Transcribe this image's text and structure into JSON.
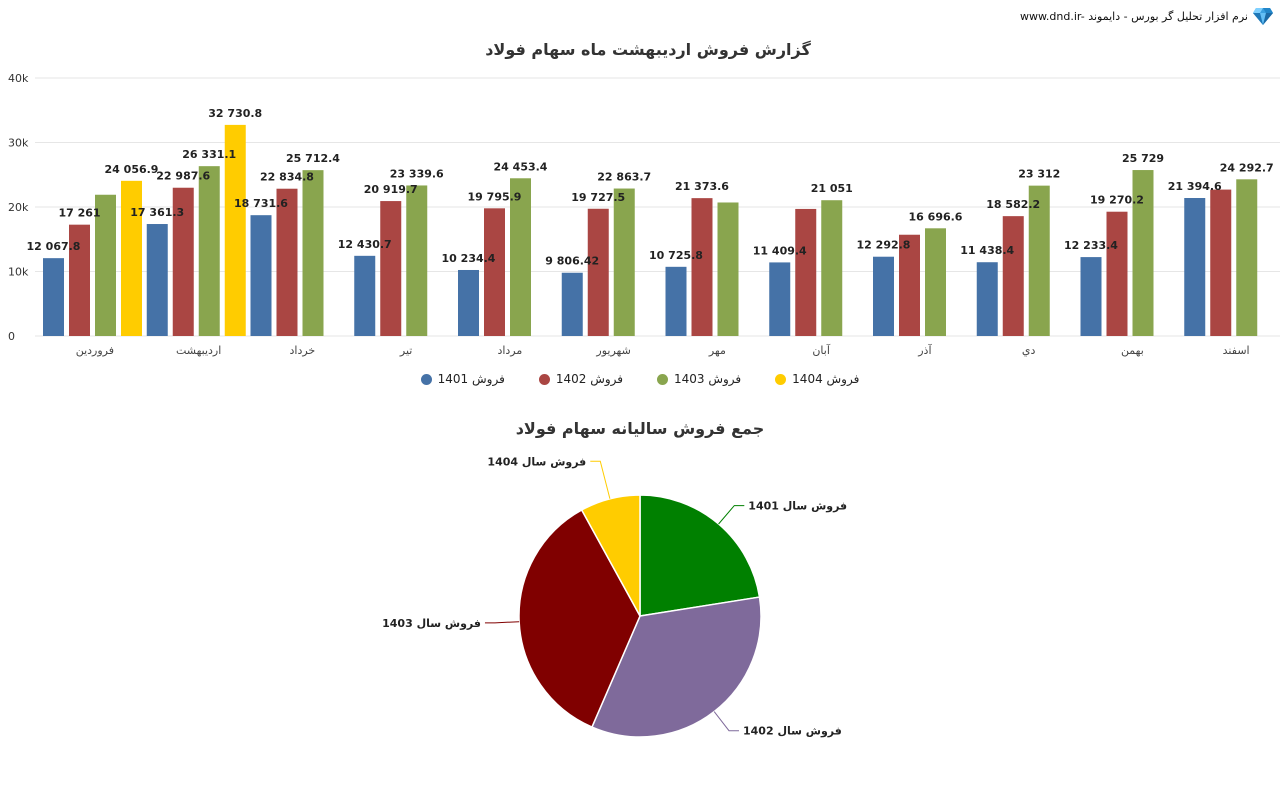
{
  "brand": {
    "text": "www.dnd.ir- نرم افزار تحلیل گر بورس - دایموند",
    "icon": "diamond-icon"
  },
  "bar_chart_title": "گزارش فروش اردیبهشت ماه سهام فولاد",
  "pie_chart_title": "جمع فروش سالیانه سهام فولاد",
  "legend": [
    {
      "label": "فروش 1401",
      "color": "#4572a7"
    },
    {
      "label": "فروش 1402",
      "color": "#aa4643"
    },
    {
      "label": "فروش 1403",
      "color": "#89a54e"
    },
    {
      "label": "فروش 1404",
      "color": "#ffcc00"
    }
  ],
  "chart_data": [
    {
      "type": "bar",
      "title": "گزارش فروش اردیبهشت ماه سهام فولاد",
      "categories": [
        "فروردین",
        "اردیبهشت",
        "خرداد",
        "تیر",
        "مرداد",
        "شهریور",
        "مهر",
        "آبان",
        "آذر",
        "دي",
        "بهمن",
        "اسفند"
      ],
      "yticks": [
        "0",
        "10k",
        "20k",
        "30k",
        "40k"
      ],
      "ylim": [
        0,
        40000
      ],
      "grid": true,
      "legend_position": "bottom",
      "series": [
        {
          "name": "فروش 1401",
          "color": "#4572a7",
          "values": [
            12067.8,
            17361.3,
            18731.6,
            12430.7,
            10234.4,
            9806.42,
            10725.8,
            11409.4,
            12292.8,
            11438.4,
            12233.4,
            21394.6
          ],
          "labels": [
            "12 067.8",
            "17 361.3",
            "18 731.6",
            "12 430.7",
            "10 234.4",
            "9 806.42",
            "10 725.8",
            "11 409.4",
            "12 292.8",
            "11 438.4",
            "12 233.4",
            "21 394.6"
          ]
        },
        {
          "name": "فروش 1402",
          "color": "#aa4643",
          "values": [
            17261,
            22987.6,
            22834.8,
            20919.7,
            19795.9,
            19727.5,
            21373.6,
            19700,
            15700,
            18582.2,
            19270.2,
            22700
          ],
          "labels": [
            "17 261",
            "22 987.6",
            "22 834.8",
            "20 919.7",
            "19 795.9",
            "19 727.5",
            "21 373.6",
            "",
            "",
            "18 582.2",
            "19 270.2",
            ""
          ]
        },
        {
          "name": "فروش 1403",
          "color": "#89a54e",
          "values": [
            21900,
            26331.1,
            25712.4,
            23339.6,
            24453.4,
            22863.7,
            20700,
            21051,
            16696.6,
            23312,
            25729,
            24292.7
          ],
          "labels": [
            "",
            "26 331.1",
            "25 712.4",
            "23 339.6",
            "24 453.4",
            "22 863.7",
            "",
            "21 051",
            "16 696.6",
            "23 312",
            "25 729",
            "24 292.7"
          ]
        },
        {
          "name": "فروش 1404",
          "color": "#ffcc00",
          "values": [
            24056.9,
            32730.8,
            null,
            null,
            null,
            null,
            null,
            null,
            null,
            null,
            null,
            null
          ],
          "labels": [
            "24 056.9",
            "32 730.8",
            "",
            "",
            "",
            "",
            "",
            "",
            "",
            "",
            "",
            ""
          ]
        }
      ]
    },
    {
      "type": "pie",
      "title": "جمع فروش سالیانه سهام فولاد",
      "slices": [
        {
          "label": "فروش سال 1401",
          "value": 22.5,
          "color": "#008000"
        },
        {
          "label": "فروش سال 1402",
          "value": 34.0,
          "color": "#7f6a9b"
        },
        {
          "label": "فروش سال 1403",
          "value": 35.5,
          "color": "#800000"
        },
        {
          "label": "فروش سال 1404",
          "value": 8.0,
          "color": "#ffcc00"
        }
      ]
    }
  ]
}
